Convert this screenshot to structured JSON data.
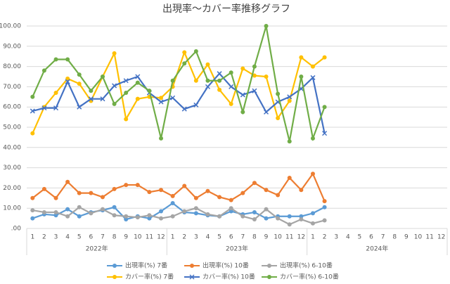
{
  "chart_data": {
    "type": "line",
    "title": "出現率～カバー率推移グラフ",
    "categories": [
      "1",
      "2",
      "3",
      "4",
      "5",
      "6",
      "7",
      "8",
      "9",
      "10",
      "11",
      "12",
      "1",
      "2",
      "3",
      "4",
      "5",
      "6",
      "7",
      "8",
      "9",
      "10",
      "11",
      "12",
      "1",
      "2",
      "3",
      "4",
      "5",
      "6",
      "7",
      "8",
      "9",
      "10",
      "11",
      "12"
    ],
    "year_labels": [
      "2022年",
      "2023年",
      "2024年"
    ],
    "ylim": [
      0,
      100
    ],
    "yticks": [
      {
        "value": 0,
        "label": ".00"
      },
      {
        "value": 10,
        "label": "10.00"
      },
      {
        "value": 20,
        "label": "20.00"
      },
      {
        "value": 30,
        "label": "30.00"
      },
      {
        "value": 40,
        "label": "40.00"
      },
      {
        "value": 50,
        "label": "50.00"
      },
      {
        "value": 60,
        "label": "60.00"
      },
      {
        "value": 70,
        "label": "70.00"
      },
      {
        "value": 80,
        "label": "80.00"
      },
      {
        "value": 90,
        "label": "90.00"
      },
      {
        "value": 100,
        "label": "100.00"
      }
    ],
    "grid": true,
    "series": [
      {
        "name": "出現率(%) 7番",
        "color": "#5b9bd5",
        "marker": "circle",
        "values": [
          5,
          7,
          6.5,
          9.5,
          6,
          8,
          9,
          10.5,
          4.5,
          6,
          5,
          8.5,
          12.5,
          8,
          7.5,
          6.5,
          6,
          8.5,
          7,
          8,
          5,
          6,
          6,
          6,
          7.5,
          10.5,
          null,
          null,
          null,
          null,
          null,
          null,
          null,
          null,
          null,
          null
        ]
      },
      {
        "name": "出現率(%) 10番",
        "color": "#ed7d31",
        "marker": "circle",
        "values": [
          15,
          19.5,
          15,
          23,
          17.5,
          17.5,
          15.5,
          19.5,
          21.5,
          21.5,
          18,
          19,
          16,
          21,
          15,
          18.5,
          15.5,
          14,
          17.5,
          22.5,
          19,
          16.5,
          25,
          19,
          27,
          13.5,
          null,
          null,
          null,
          null,
          null,
          null,
          null,
          null,
          null,
          null
        ]
      },
      {
        "name": "出現率(%) 6-10番",
        "color": "#a5a5a5",
        "marker": "circle",
        "values": [
          9,
          8,
          8,
          6,
          10.5,
          7.5,
          9.5,
          6.5,
          6,
          5.5,
          6.5,
          5,
          6,
          8.5,
          10,
          7,
          6,
          10,
          6,
          4.5,
          9.5,
          5,
          2,
          4.5,
          2.5,
          4,
          null,
          null,
          null,
          null,
          null,
          null,
          null,
          null,
          null,
          null
        ]
      },
      {
        "name": "カバー率(%) 7番",
        "color": "#ffc000",
        "marker": "circle",
        "values": [
          47,
          60,
          67,
          74,
          71.5,
          63,
          75,
          86.5,
          54,
          64,
          65,
          64.5,
          70,
          87,
          73,
          81,
          68.5,
          61.5,
          79,
          75.5,
          75,
          54.5,
          63,
          84.5,
          80,
          84.5,
          null,
          null,
          null,
          null,
          null,
          null,
          null,
          null,
          null,
          null
        ]
      },
      {
        "name": "カバー率(%) 10番",
        "color": "#4472c4",
        "marker": "x",
        "values": [
          58,
          59.5,
          59.5,
          72.5,
          60,
          64,
          64,
          70.5,
          73,
          75,
          67,
          62.5,
          64.5,
          59,
          61,
          70,
          76.5,
          70,
          66,
          68,
          57.5,
          62.5,
          65,
          69,
          74.5,
          47,
          null,
          null,
          null,
          null,
          null,
          null,
          null,
          null,
          null,
          null
        ]
      },
      {
        "name": "カバー率(%) 6-10番",
        "color": "#70ad47",
        "marker": "circle",
        "values": [
          65,
          78,
          83.5,
          83.5,
          76,
          68,
          75,
          61.5,
          67,
          72,
          68,
          44.5,
          73,
          81.5,
          87.5,
          73,
          73,
          77,
          57.5,
          80,
          100,
          66.5,
          43,
          75,
          44.5,
          60,
          null,
          null,
          null,
          null,
          null,
          null,
          null,
          null,
          null,
          null
        ]
      }
    ]
  }
}
